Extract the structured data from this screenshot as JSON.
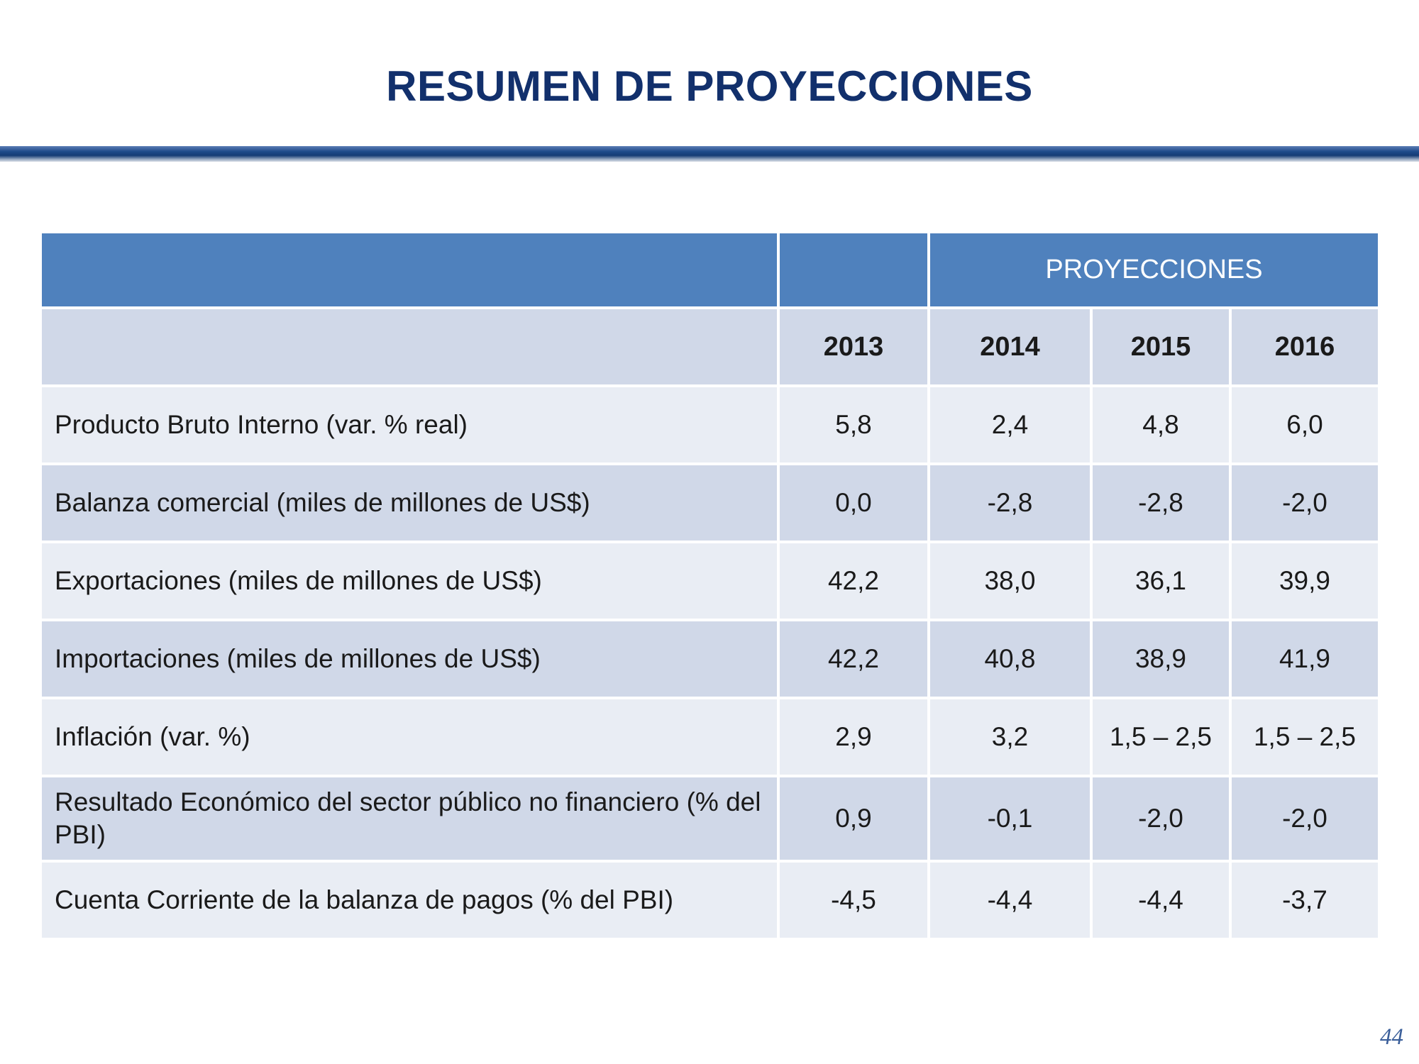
{
  "slide": {
    "title": "RESUMEN DE PROYECCIONES",
    "page_number": "44"
  },
  "table": {
    "group_header": "PROYECCIONES",
    "years": [
      "2013",
      "2014",
      "2015",
      "2016"
    ],
    "rows": [
      {
        "label": "Producto Bruto Interno (var. % real)",
        "values": [
          "5,8",
          "2,4",
          "4,8",
          "6,0"
        ]
      },
      {
        "label": "Balanza comercial (miles de millones de US$)",
        "values": [
          "0,0",
          "-2,8",
          "-2,8",
          "-2,0"
        ]
      },
      {
        "label": "Exportaciones (miles de millones de US$)",
        "values": [
          "42,2",
          "38,0",
          "36,1",
          "39,9"
        ]
      },
      {
        "label": "Importaciones (miles de millones de US$)",
        "values": [
          "42,2",
          "40,8",
          "38,9",
          "41,9"
        ]
      },
      {
        "label": "Inflación (var. %)",
        "values": [
          "2,9",
          "3,2",
          "1,5 – 2,5",
          "1,5 – 2,5"
        ]
      },
      {
        "label": "Resultado Económico del sector público no financiero (% del PBI)",
        "values": [
          "0,9",
          "-0,1",
          "-2,0",
          "-2,0"
        ]
      },
      {
        "label": "Cuenta Corriente de la balanza de pagos (% del PBI)",
        "values": [
          "-4,5",
          "-4,4",
          "-4,4",
          "-3,7"
        ]
      }
    ]
  },
  "colors": {
    "title": "#12306c",
    "header_blue": "#4f81bd",
    "row_dark": "#d0d8e8",
    "row_light": "#e9edf4"
  }
}
